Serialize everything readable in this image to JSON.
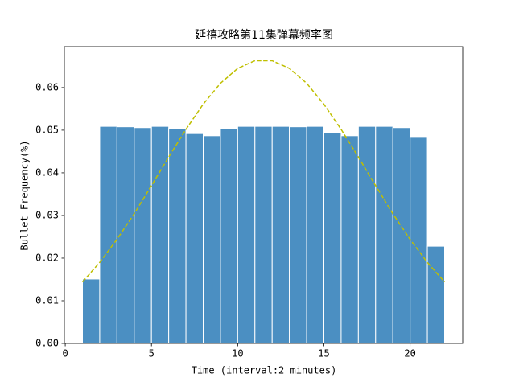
{
  "chart_data": {
    "type": "histogram",
    "title": "延禧攻略第11集弹幕频率图",
    "xlabel": "Time (interval:2 minutes)",
    "ylabel": "Bullet Frequency(%)",
    "bins": [
      1,
      2,
      3,
      4,
      5,
      6,
      7,
      8,
      9,
      10,
      11,
      12,
      13,
      14,
      15,
      16,
      17,
      18,
      19,
      20,
      21,
      22
    ],
    "values": [
      0.0151,
      0.0509,
      0.0508,
      0.0506,
      0.0509,
      0.0504,
      0.0492,
      0.0487,
      0.0504,
      0.0509,
      0.0509,
      0.0509,
      0.0508,
      0.0509,
      0.0494,
      0.0487,
      0.0509,
      0.0509,
      0.0506,
      0.0485,
      0.0228
    ],
    "color": "#4b8fc2",
    "edgecolor": "#ffffff",
    "line": {
      "x": [
        1,
        2,
        3,
        4,
        5,
        6,
        7,
        8,
        9,
        10,
        11,
        12,
        13,
        14,
        15,
        16,
        17,
        18,
        19,
        20,
        21,
        22
      ],
      "values": [
        0.0144,
        0.019,
        0.0244,
        0.0304,
        0.037,
        0.0437,
        0.0502,
        0.0561,
        0.061,
        0.0645,
        0.0663,
        0.0663,
        0.0645,
        0.061,
        0.0561,
        0.0502,
        0.0437,
        0.037,
        0.0304,
        0.0244,
        0.019,
        0.0144
      ],
      "color": "#bfbf00",
      "dashed": true
    },
    "xlim": [
      -0.05,
      23.05
    ],
    "xticks": [
      0,
      5,
      10,
      15,
      20
    ],
    "ylim": [
      0,
      0.0696
    ],
    "yticks": [
      {
        "value": 0,
        "label": "0.00"
      },
      {
        "value": 0.01,
        "label": "0.01"
      },
      {
        "value": 0.02,
        "label": "0.02"
      },
      {
        "value": 0.03,
        "label": "0.03"
      },
      {
        "value": 0.04,
        "label": "0.04"
      },
      {
        "value": 0.05,
        "label": "0.05"
      },
      {
        "value": 0.06,
        "label": "0.06"
      }
    ]
  }
}
